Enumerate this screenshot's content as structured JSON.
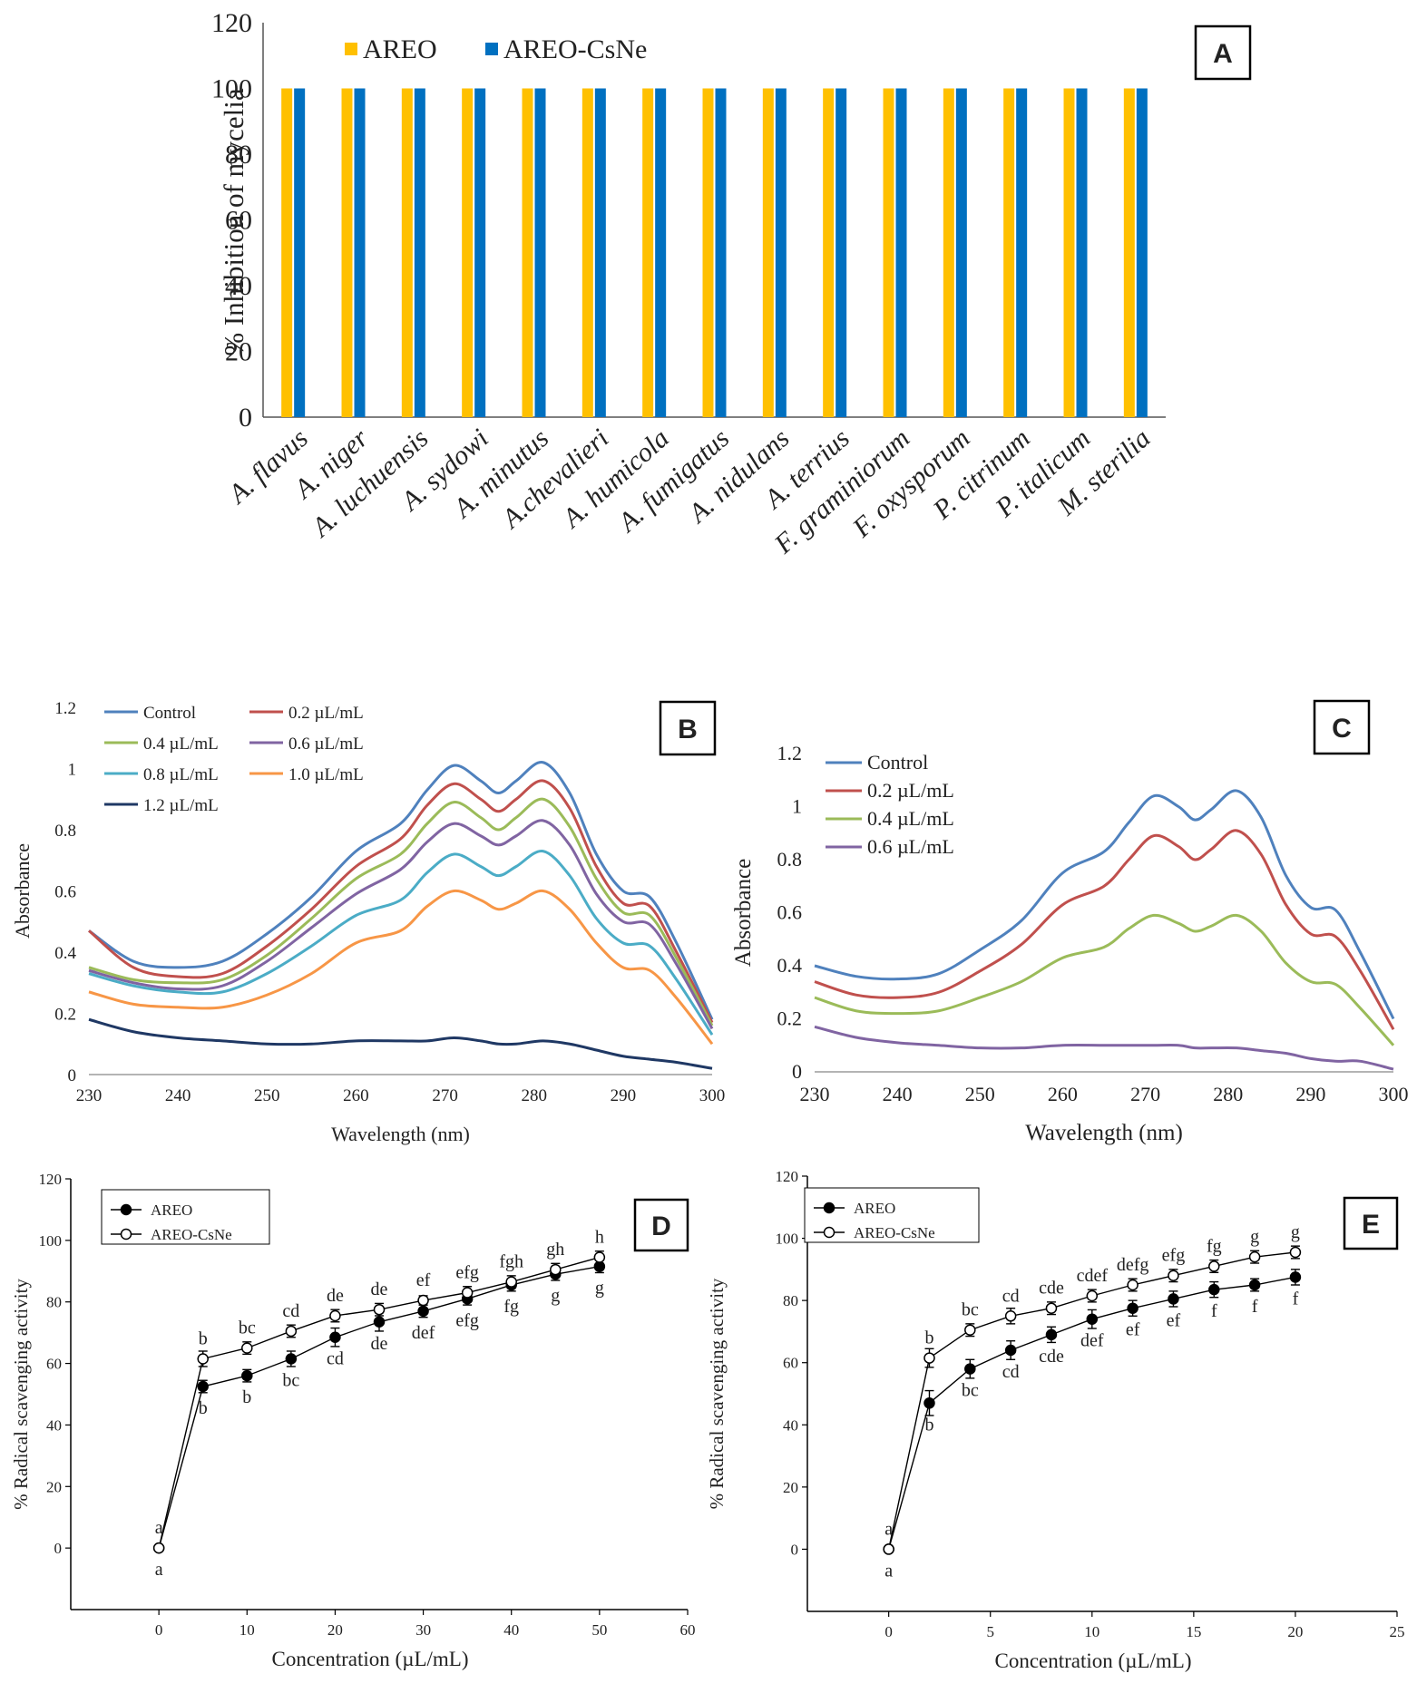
{
  "chart_data": [
    {
      "panel": "A",
      "type": "bar",
      "title": "",
      "xlabel": "",
      "ylabel": "% Inhibition of mycelia",
      "ylim": [
        0,
        120
      ],
      "yticks": [
        0,
        20,
        40,
        60,
        80,
        100,
        120
      ],
      "categories": [
        "A. flavus",
        "A. niger",
        "A. luchuensis",
        "A. sydowi",
        "A. minutus",
        "A.chevalieri",
        "A. humicola",
        "A. fumigatus",
        "A. nidulans",
        "A. terrius",
        "F. graminiorum",
        "F. oxysporum",
        "P. citrinum",
        "P. italicum",
        "M. sterilia"
      ],
      "series": [
        {
          "name": "AREO",
          "color": "#FFC000",
          "values": [
            100,
            100,
            100,
            100,
            100,
            100,
            100,
            100,
            100,
            100,
            100,
            100,
            100,
            100,
            100
          ]
        },
        {
          "name": "AREO-CsNe",
          "color": "#0070C0",
          "values": [
            100,
            100,
            100,
            100,
            100,
            100,
            100,
            100,
            100,
            100,
            100,
            100,
            100,
            100,
            100
          ]
        }
      ],
      "legend": "top-left"
    },
    {
      "panel": "B",
      "type": "line",
      "xlabel": "Wavelength (nm)",
      "ylabel": "Absorbance",
      "xlim": [
        230,
        300
      ],
      "ylim": [
        0,
        1.2
      ],
      "xticks": [
        "230",
        "240",
        "250",
        "260",
        "270",
        "280",
        "290",
        "300"
      ],
      "yticks": [
        "0",
        "0.2",
        "0.4",
        "0.6",
        "0.8",
        "1",
        "1.2"
      ],
      "x": [
        230,
        235,
        240,
        245,
        250,
        255,
        260,
        265,
        268,
        271,
        274,
        276,
        278,
        281,
        284,
        287,
        290,
        293,
        296,
        300
      ],
      "series": [
        {
          "name": "Control",
          "color": "#4F81BD",
          "values": [
            0.47,
            0.37,
            0.35,
            0.37,
            0.46,
            0.58,
            0.73,
            0.82,
            0.93,
            1.01,
            0.96,
            0.92,
            0.96,
            1.02,
            0.92,
            0.72,
            0.6,
            0.58,
            0.43,
            0.18
          ]
        },
        {
          "name": "0.2 µL/mL",
          "color": "#C0504D",
          "values": [
            0.47,
            0.35,
            0.32,
            0.33,
            0.42,
            0.54,
            0.68,
            0.77,
            0.88,
            0.95,
            0.9,
            0.86,
            0.9,
            0.96,
            0.87,
            0.68,
            0.56,
            0.55,
            0.4,
            0.17
          ]
        },
        {
          "name": "0.4 µL/mL",
          "color": "#9BBB59",
          "values": [
            0.35,
            0.31,
            0.3,
            0.31,
            0.39,
            0.51,
            0.64,
            0.72,
            0.82,
            0.89,
            0.84,
            0.8,
            0.84,
            0.9,
            0.81,
            0.64,
            0.53,
            0.52,
            0.38,
            0.16
          ]
        },
        {
          "name": "0.6 µL/mL",
          "color": "#8064A2",
          "values": [
            0.34,
            0.3,
            0.28,
            0.29,
            0.37,
            0.48,
            0.59,
            0.67,
            0.76,
            0.82,
            0.78,
            0.75,
            0.78,
            0.83,
            0.75,
            0.59,
            0.5,
            0.49,
            0.36,
            0.15
          ]
        },
        {
          "name": "0.8 µL/mL",
          "color": "#4BACC6",
          "values": [
            0.33,
            0.29,
            0.27,
            0.27,
            0.33,
            0.42,
            0.52,
            0.57,
            0.66,
            0.72,
            0.68,
            0.65,
            0.68,
            0.73,
            0.65,
            0.51,
            0.43,
            0.42,
            0.31,
            0.13
          ]
        },
        {
          "name": "1.0 µL/mL",
          "color": "#F79646",
          "values": [
            0.27,
            0.23,
            0.22,
            0.22,
            0.26,
            0.33,
            0.43,
            0.47,
            0.55,
            0.6,
            0.57,
            0.54,
            0.56,
            0.6,
            0.54,
            0.43,
            0.35,
            0.34,
            0.25,
            0.1
          ]
        },
        {
          "name": "1.2 µL/mL",
          "color": "#1F3864",
          "values": [
            0.18,
            0.14,
            0.12,
            0.11,
            0.1,
            0.1,
            0.11,
            0.11,
            0.11,
            0.12,
            0.11,
            0.1,
            0.1,
            0.11,
            0.1,
            0.08,
            0.06,
            0.05,
            0.04,
            0.02
          ]
        }
      ],
      "legend": "top-left"
    },
    {
      "panel": "C",
      "type": "line",
      "xlabel": "Wavelength (nm)",
      "ylabel": "Absorbance",
      "xlim": [
        230,
        300
      ],
      "ylim": [
        0,
        1.2
      ],
      "xticks": [
        "230",
        "240",
        "250",
        "260",
        "270",
        "280",
        "290",
        "300"
      ],
      "yticks": [
        "0",
        "0.2",
        "0.4",
        "0.6",
        "0.8",
        "1",
        "1.2"
      ],
      "x": [
        230,
        235,
        240,
        245,
        250,
        255,
        260,
        265,
        268,
        271,
        274,
        276,
        278,
        281,
        284,
        287,
        290,
        293,
        296,
        300
      ],
      "series": [
        {
          "name": "Control",
          "color": "#4F81BD",
          "values": [
            0.4,
            0.36,
            0.35,
            0.37,
            0.46,
            0.57,
            0.75,
            0.83,
            0.94,
            1.04,
            1.0,
            0.95,
            0.99,
            1.06,
            0.96,
            0.74,
            0.62,
            0.61,
            0.45,
            0.2
          ]
        },
        {
          "name": "0.2 µL/mL",
          "color": "#C0504D",
          "values": [
            0.34,
            0.29,
            0.28,
            0.3,
            0.38,
            0.48,
            0.63,
            0.7,
            0.8,
            0.89,
            0.85,
            0.8,
            0.84,
            0.91,
            0.82,
            0.63,
            0.52,
            0.51,
            0.38,
            0.16
          ]
        },
        {
          "name": "0.4 µL/mL",
          "color": "#9BBB59",
          "values": [
            0.28,
            0.23,
            0.22,
            0.23,
            0.28,
            0.34,
            0.43,
            0.47,
            0.54,
            0.59,
            0.56,
            0.53,
            0.55,
            0.59,
            0.53,
            0.41,
            0.34,
            0.33,
            0.24,
            0.1
          ]
        },
        {
          "name": "0.6 µL/mL",
          "color": "#8064A2",
          "values": [
            0.17,
            0.13,
            0.11,
            0.1,
            0.09,
            0.09,
            0.1,
            0.1,
            0.1,
            0.1,
            0.1,
            0.09,
            0.09,
            0.09,
            0.08,
            0.07,
            0.05,
            0.04,
            0.04,
            0.01
          ]
        }
      ],
      "legend": "top-left"
    },
    {
      "panel": "D",
      "type": "line",
      "xlabel": "Concentration (µL/mL)",
      "ylabel": "% Radical scavenging activity",
      "xlim": [
        -10,
        60
      ],
      "ylim": [
        -20,
        120
      ],
      "xticks": [
        "0",
        "10",
        "20",
        "30",
        "40",
        "50",
        "60"
      ],
      "yticks": [
        "0",
        "20",
        "40",
        "60",
        "80",
        "100",
        "120"
      ],
      "x": [
        0,
        5,
        10,
        15,
        20,
        25,
        30,
        35,
        40,
        45,
        50
      ],
      "series": [
        {
          "name": "AREO",
          "marker": "filled",
          "values": [
            0,
            52.5,
            56,
            61.5,
            68.5,
            73.5,
            77,
            81,
            85.5,
            89,
            91.5
          ],
          "errors": [
            0,
            2,
            2,
            2.5,
            3,
            3,
            2,
            2,
            2,
            2,
            2
          ],
          "letters": [
            "a",
            "b",
            "b",
            "bc",
            "cd",
            "de",
            "def",
            "efg",
            "fg",
            "g",
            "g"
          ]
        },
        {
          "name": "AREO-CsNe",
          "marker": "open",
          "values": [
            0,
            61.5,
            65,
            70.5,
            75.5,
            77.5,
            80.5,
            83,
            86.5,
            90.5,
            94.5
          ],
          "errors": [
            0,
            2.5,
            2,
            2,
            2,
            2,
            1.5,
            2,
            2,
            2,
            2
          ],
          "letters": [
            "a",
            "b",
            "bc",
            "cd",
            "de",
            "de",
            "ef",
            "efg",
            "fgh",
            "gh",
            "h"
          ]
        }
      ],
      "legend": "top-left"
    },
    {
      "panel": "E",
      "type": "line",
      "xlabel": "Concentration (µL/mL)",
      "ylabel": "% Radical scavenging activity",
      "xlim": [
        -4,
        25
      ],
      "ylim": [
        -20,
        120
      ],
      "xticks": [
        "0",
        "5",
        "10",
        "15",
        "20",
        "25"
      ],
      "yticks": [
        "0",
        "20",
        "40",
        "60",
        "80",
        "100",
        "120"
      ],
      "x": [
        0,
        2,
        4,
        6,
        8,
        10,
        12,
        14,
        16,
        18,
        20
      ],
      "series": [
        {
          "name": "AREO",
          "marker": "filled",
          "values": [
            0,
            47,
            58,
            64,
            69,
            74,
            77.5,
            80.5,
            83.5,
            85,
            87.5
          ],
          "errors": [
            0,
            4,
            3,
            3,
            2.5,
            3,
            2.5,
            2.5,
            2.5,
            2,
            2.5
          ],
          "letters": [
            "a",
            "b",
            "bc",
            "cd",
            "cde",
            "def",
            "ef",
            "ef",
            "f",
            "f",
            "f"
          ]
        },
        {
          "name": "AREO-CsNe",
          "marker": "open",
          "values": [
            0,
            61.5,
            70.5,
            75,
            77.5,
            81.5,
            85,
            88,
            91,
            94,
            95.5
          ],
          "errors": [
            0,
            3,
            2,
            2.5,
            2,
            2,
            2,
            2,
            2,
            2,
            2
          ],
          "letters": [
            "a",
            "b",
            "bc",
            "cd",
            "cde",
            "cdef",
            "defg",
            "efg",
            "fg",
            "g",
            "g"
          ]
        }
      ],
      "legend": "top-left"
    }
  ],
  "panel_labels": {
    "A": "A",
    "B": "B",
    "C": "C",
    "D": "D",
    "E": "E"
  }
}
